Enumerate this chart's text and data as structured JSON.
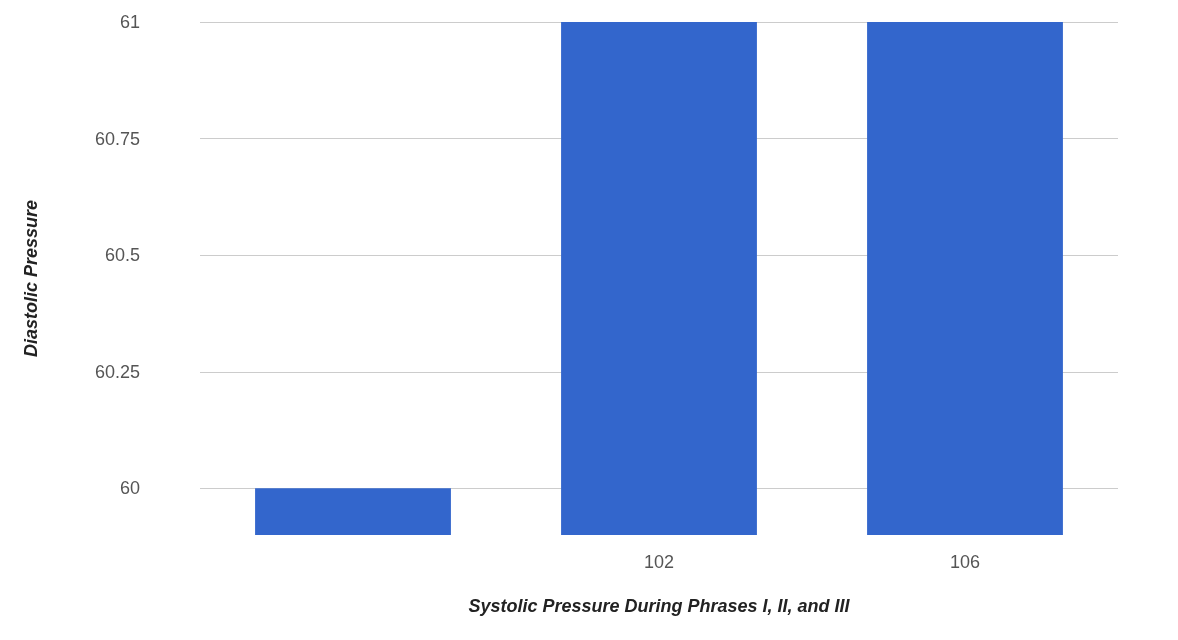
{
  "chart_data": {
    "type": "bar",
    "xlabel": "Systolic Pressure During Phrases I, II, and III",
    "ylabel": "Diastolic Pressure",
    "categories": [
      null,
      "102",
      "106"
    ],
    "values": [
      60,
      61,
      61
    ],
    "color": "#3366cc",
    "ylim": [
      59.9,
      61
    ],
    "yticks": [
      60,
      60.25,
      60.5,
      60.75,
      61
    ],
    "grid": "y"
  }
}
